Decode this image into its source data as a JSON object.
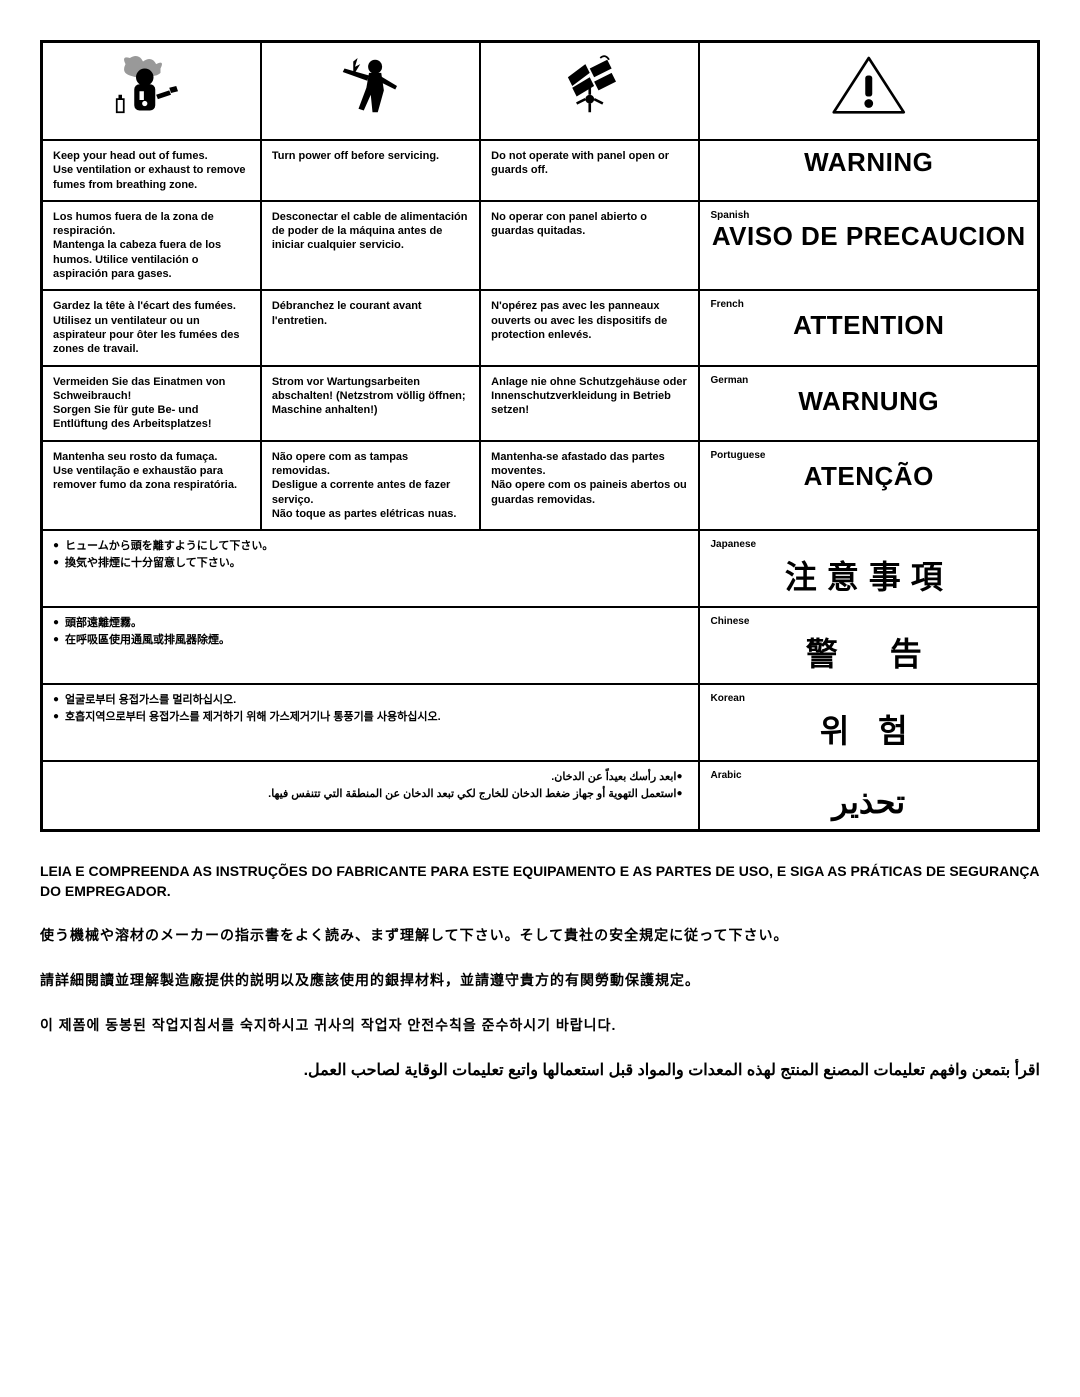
{
  "icons": {
    "fumes": "fumes-icon",
    "power": "power-off-icon",
    "panel": "panel-guard-icon",
    "warning": "warning-triangle-icon"
  },
  "rows": {
    "english": {
      "col1": "Keep your head out of fumes.\nUse ventilation or exhaust to remove fumes from breathing zone.",
      "col2": "Turn power off before servicing.",
      "col3": "Do not operate with panel open or guards off.",
      "warning": "WARNING",
      "lang_label": ""
    },
    "spanish": {
      "col1": "Los humos fuera de la zona de respiración.\nMantenga la cabeza fuera de los humos. Utilice ventilación o aspiración para gases.",
      "col2": "Desconectar el cable de alimentación de poder de la máquina antes de iniciar cualquier servicio.",
      "col3": "No operar con panel abierto o guardas quitadas.",
      "warning": "AVISO DE PRECAUCION",
      "lang_label": "Spanish"
    },
    "french": {
      "col1": "Gardez la tête à l'écart des fumées.\nUtilisez un ventilateur ou un aspirateur pour ôter les fumées des zones de travail.",
      "col2": "Débranchez le courant avant l'entretien.",
      "col3": "N'opérez pas avec les panneaux ouverts ou avec les dispositifs de protection enlevés.",
      "warning": "ATTENTION",
      "lang_label": "French"
    },
    "german": {
      "col1": "Vermeiden Sie das Einatmen von Schweibrauch!\nSorgen Sie für gute Be- und Entlüftung des Arbeitsplatzes!",
      "col2": "Strom vor Wartungsarbeiten abschalten! (Netzstrom völlig öffnen; Maschine anhalten!)",
      "col3": "Anlage nie ohne Schutzgehäuse oder Innenschutzverkleidung in Betrieb setzen!",
      "warning": "WARNUNG",
      "lang_label": "German"
    },
    "portuguese": {
      "col1": "Mantenha seu rosto da fumaça.\nUse ventilação e exhaustão para remover fumo da zona respiratória.",
      "col2": "Não opere com as tampas removidas.\nDesligue a corrente antes de fazer serviço.\nNão toque as partes elétricas nuas.",
      "col3": "Mantenha-se afastado das partes moventes.\nNão opere com os paineis abertos ou guardas removidas.",
      "warning": "ATENÇÃO",
      "lang_label": "Portuguese"
    },
    "japanese": {
      "bullets": [
        "ヒュームから頭を離すようにして下さい。",
        "換気や排煙に十分留意して下さい。"
      ],
      "warning": "注意事項",
      "lang_label": "Japanese"
    },
    "chinese": {
      "bullets": [
        "頭部遠離煙霧。",
        "在呼吸區使用通風或排風器除煙。"
      ],
      "warning": "警　告",
      "lang_label": "Chinese"
    },
    "korean": {
      "bullets": [
        "얼굴로부터 용접가스를 멀리하십시오.",
        "호흡지역으로부터 용접가스를 제거하기 위해 가스제거기나 통풍기를 사용하십시오."
      ],
      "warning": "위 험",
      "lang_label": "Korean"
    },
    "arabic": {
      "bullets": [
        "ابعد رأسك بعيداً عن الدخان.",
        "استعمل التهوية أو جهاز ضغط الدخان للخارج لكي تبعد الدخان عن المنطقة التي تتنفس فيها."
      ],
      "warning": "تحذير",
      "lang_label": "Arabic"
    }
  },
  "footer": {
    "portuguese": "LEIA E COMPREENDA AS INSTRUÇÕES DO FABRICANTE PARA ESTE EQUIPAMENTO E AS PARTES DE USO, E SIGA AS PRÁTICAS DE SEGURANÇA DO EMPREGADOR.",
    "japanese": "使う機械や溶材のメーカーの指示書をよく読み、まず理解して下さい。そして貴社の安全規定に従って下さい。",
    "chinese": "請詳細閱讀並理解製造廠提供的説明以及應該使用的銀捍材料，並請遵守貴方的有関勞動保護規定。",
    "korean": "이 제폼에 동봉된 작업지침서를 숙지하시고 귀사의 작업자 안전수칙을 준수하시기 바랍니다.",
    "arabic": "اقرأ بتمعن وافهم تعليمات المصنع المنتج لهذه المعدات والمواد قبل استعمالها واتبع تعليمات الوقاية لصاحب العمل."
  }
}
